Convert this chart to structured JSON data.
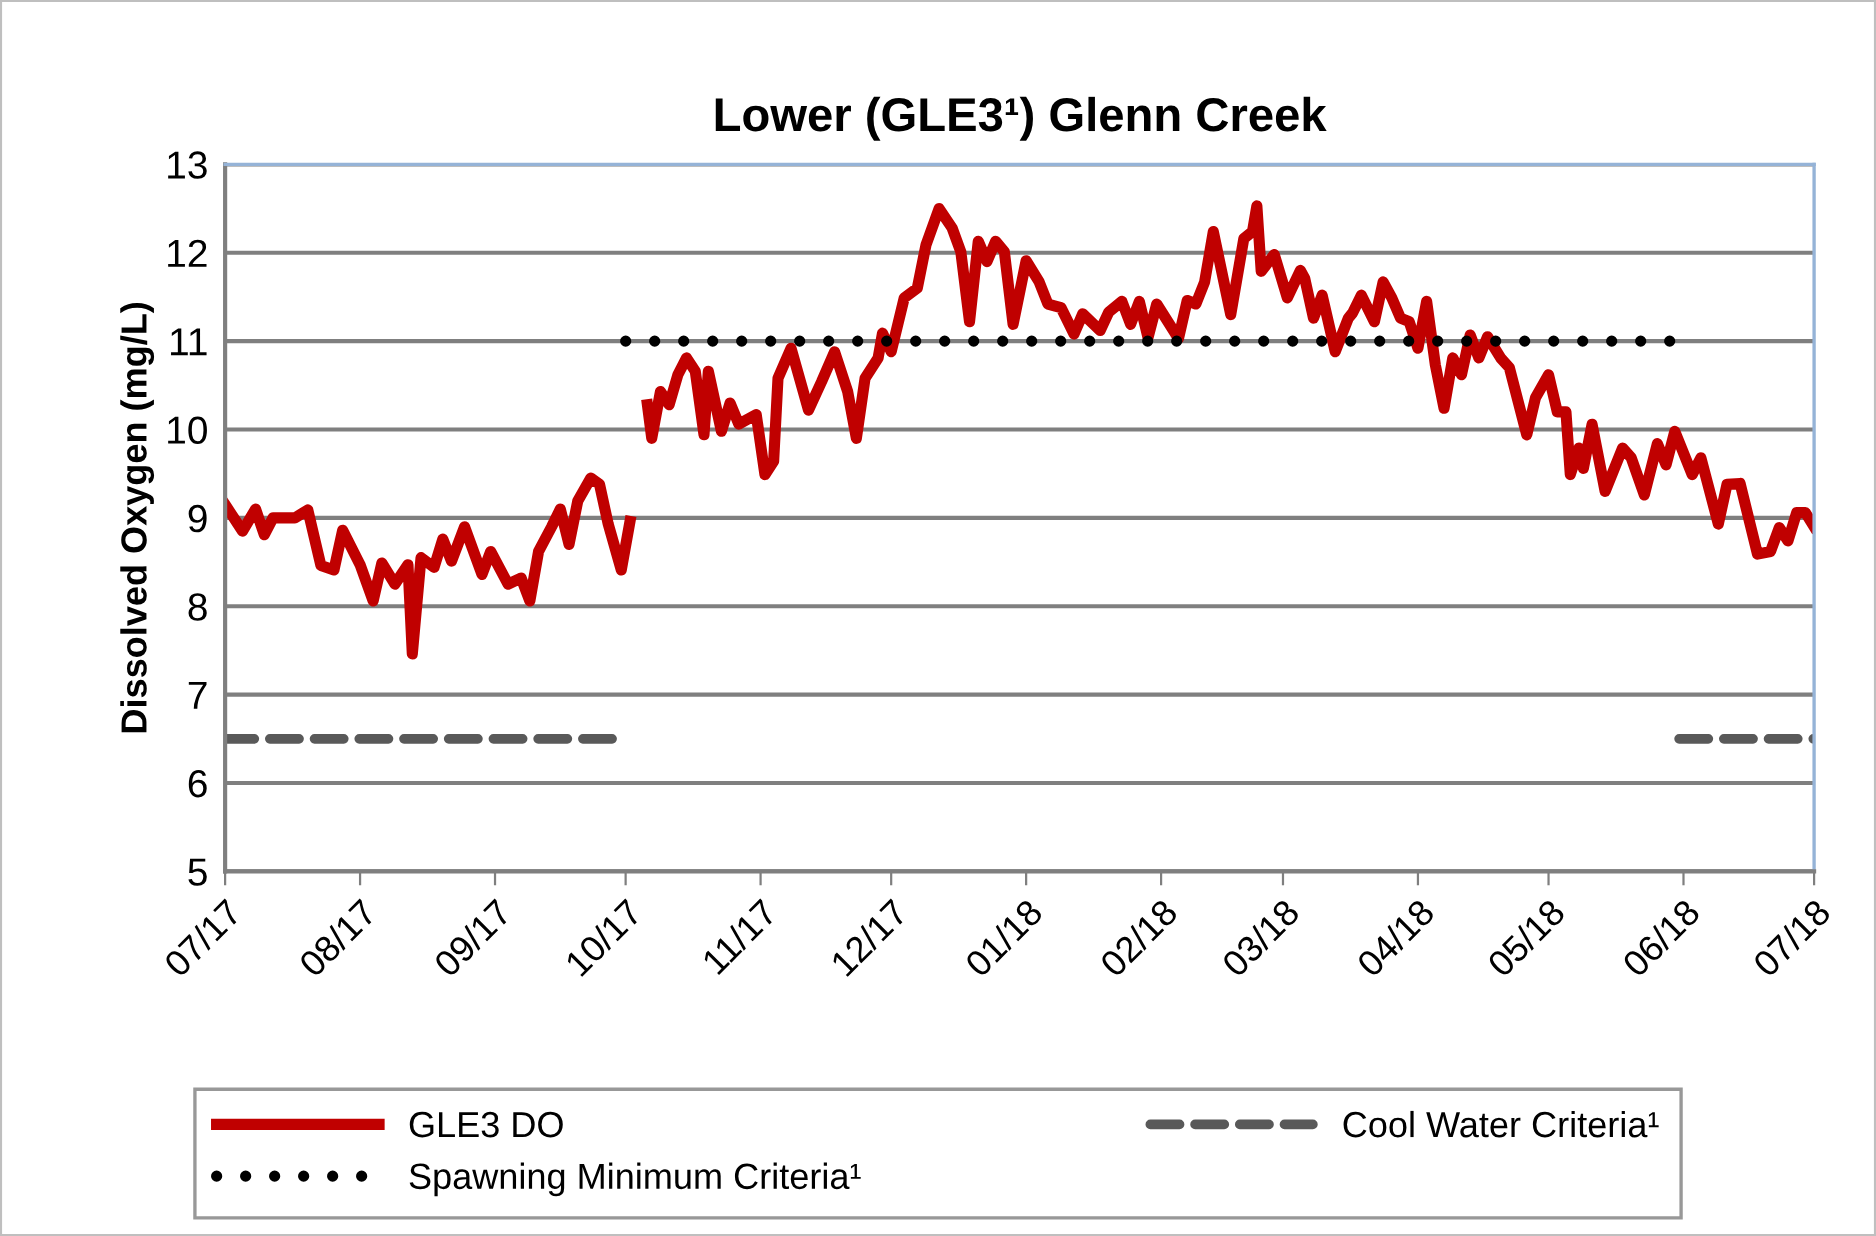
{
  "chart_data": {
    "type": "line",
    "title": "Lower (GLE3¹) Glenn Creek",
    "ylabel": "Dissolved Oxygen (mg/L)",
    "series": [
      {
        "name": "GLE3 DO",
        "color": "#c00000",
        "line_style": "solid",
        "x": [
          "2017-07-01",
          "2017-07-05",
          "2017-07-08",
          "2017-07-10",
          "2017-07-12",
          "2017-07-17",
          "2017-07-20",
          "2017-07-23",
          "2017-07-26",
          "2017-07-28",
          "2017-08-01",
          "2017-08-04",
          "2017-08-06",
          "2017-08-09",
          "2017-08-12",
          "2017-08-13",
          "2017-08-15",
          "2017-08-18",
          "2017-08-20",
          "2017-08-22",
          "2017-08-25",
          "2017-08-29",
          "2017-08-31",
          "2017-09-04",
          "2017-09-07",
          "2017-09-09",
          "2017-09-11",
          "2017-09-14",
          "2017-09-16",
          "2017-09-18",
          "2017-09-20",
          "2017-09-23",
          "2017-09-25",
          "2017-09-27",
          "2017-09-30",
          "2017-10-02",
          "2017-10-04",
          "2017-10-06",
          "2017-10-07",
          "2017-10-09",
          "2017-10-11",
          "2017-10-13",
          "2017-10-15",
          "2017-10-17",
          "2017-10-19",
          "2017-10-20",
          "2017-10-23",
          "2017-10-25",
          "2017-10-27",
          "2017-10-31",
          "2017-11-02",
          "2017-11-04",
          "2017-11-05",
          "2017-11-08",
          "2017-11-12",
          "2017-11-15",
          "2017-11-18",
          "2017-11-21",
          "2017-11-23",
          "2017-11-25",
          "2017-11-28",
          "2017-11-29",
          "2017-12-01",
          "2017-12-04",
          "2017-12-07",
          "2017-12-09",
          "2017-12-12",
          "2017-12-15",
          "2017-12-17",
          "2017-12-19",
          "2017-12-21",
          "2017-12-23",
          "2017-12-25",
          "2017-12-27",
          "2017-12-29",
          "2018-01-01",
          "2018-01-04",
          "2018-01-06",
          "2018-01-09",
          "2018-01-12",
          "2018-01-14",
          "2018-01-18",
          "2018-01-20",
          "2018-01-23",
          "2018-01-25",
          "2018-01-27",
          "2018-01-29",
          "2018-01-31",
          "2018-02-05",
          "2018-02-07",
          "2018-02-09",
          "2018-02-11",
          "2018-02-13",
          "2018-02-17",
          "2018-02-20",
          "2018-02-22",
          "2018-02-23",
          "2018-02-24",
          "2018-02-27",
          "2018-03-02",
          "2018-03-05",
          "2018-03-06",
          "2018-03-08",
          "2018-03-10",
          "2018-03-13",
          "2018-03-16",
          "2018-03-17",
          "2018-03-19",
          "2018-03-22",
          "2018-03-24",
          "2018-03-26",
          "2018-03-28",
          "2018-03-30",
          "2018-04-01",
          "2018-04-03",
          "2018-04-05",
          "2018-04-07",
          "2018-04-09",
          "2018-04-11",
          "2018-04-13",
          "2018-04-15",
          "2018-04-17",
          "2018-04-20",
          "2018-04-22",
          "2018-04-26",
          "2018-04-28",
          "2018-05-01",
          "2018-05-03",
          "2018-05-05",
          "2018-05-06",
          "2018-05-08",
          "2018-05-09",
          "2018-05-11",
          "2018-05-14",
          "2018-05-18",
          "2018-05-20",
          "2018-05-23",
          "2018-05-26",
          "2018-05-28",
          "2018-05-30",
          "2018-06-03",
          "2018-06-05",
          "2018-06-09",
          "2018-06-11",
          "2018-06-14",
          "2018-06-18",
          "2018-06-21",
          "2018-06-23",
          "2018-06-25",
          "2018-06-27",
          "2018-06-29",
          "2018-07-01"
        ],
        "values": [
          9.15,
          8.85,
          9.1,
          8.81,
          9.0,
          9.0,
          9.09,
          8.46,
          8.41,
          8.86,
          8.47,
          8.06,
          8.49,
          8.25,
          8.47,
          7.46,
          8.55,
          8.44,
          8.76,
          8.51,
          8.9,
          8.36,
          8.62,
          8.25,
          8.32,
          8.06,
          8.62,
          8.9,
          9.1,
          8.7,
          9.19,
          9.45,
          9.38,
          8.93,
          8.41,
          8.96,
          null,
          10.28,
          9.9,
          10.43,
          10.28,
          10.62,
          10.81,
          10.66,
          9.94,
          10.66,
          9.98,
          10.3,
          10.06,
          10.17,
          9.49,
          9.64,
          10.58,
          10.92,
          10.22,
          10.54,
          10.88,
          10.43,
          9.9,
          10.58,
          10.81,
          11.09,
          10.88,
          11.49,
          11.6,
          12.09,
          12.5,
          12.28,
          12.01,
          11.22,
          12.13,
          11.9,
          12.13,
          12.01,
          11.19,
          11.91,
          11.67,
          11.42,
          11.38,
          11.08,
          11.31,
          11.12,
          11.33,
          11.45,
          11.19,
          11.45,
          11.04,
          11.42,
          11.03,
          11.46,
          11.42,
          11.67,
          12.24,
          11.3,
          12.16,
          12.24,
          12.53,
          11.79,
          11.98,
          11.49,
          11.8,
          11.71,
          11.26,
          11.52,
          10.88,
          11.26,
          11.32,
          11.52,
          11.22,
          11.67,
          11.49,
          11.26,
          11.22,
          10.92,
          11.45,
          10.73,
          10.24,
          10.81,
          10.62,
          11.07,
          10.81,
          11.05,
          10.81,
          10.7,
          9.94,
          10.36,
          10.62,
          10.2,
          10.2,
          9.49,
          9.79,
          9.56,
          10.06,
          9.3,
          9.79,
          9.68,
          9.26,
          9.84,
          9.6,
          9.98,
          9.49,
          9.68,
          8.93,
          9.38,
          9.39,
          8.59,
          8.62,
          8.89,
          8.74,
          9.06,
          9.06,
          8.9
        ]
      },
      {
        "name": "Spawning Minimum Criteria¹",
        "color": "#000000",
        "line_style": "dotted",
        "x": [
          "2017-10-01",
          "2018-05-29"
        ],
        "values": [
          11,
          11
        ]
      },
      {
        "name": "Cool Water Criteria¹",
        "color": "#595959",
        "line_style": "dashed",
        "x": [
          "2017-07-01",
          "2017-10-01",
          "2018-01-01",
          "2018-05-31",
          "2018-07-01"
        ],
        "values": [
          6.5,
          6.5,
          null,
          6.5,
          6.5
        ]
      }
    ],
    "xlim": [
      "2017-07-01",
      "2018-07-01"
    ],
    "xticks": [
      {
        "value": "2017-07-01",
        "label": "07/17"
      },
      {
        "value": "2017-08-01",
        "label": "08/17"
      },
      {
        "value": "2017-09-01",
        "label": "09/17"
      },
      {
        "value": "2017-10-01",
        "label": "10/17"
      },
      {
        "value": "2017-11-01",
        "label": "11/17"
      },
      {
        "value": "2017-12-01",
        "label": "12/17"
      },
      {
        "value": "2018-01-01",
        "label": "01/18"
      },
      {
        "value": "2018-02-01",
        "label": "02/18"
      },
      {
        "value": "2018-03-01",
        "label": "03/18"
      },
      {
        "value": "2018-04-01",
        "label": "04/18"
      },
      {
        "value": "2018-05-01",
        "label": "05/18"
      },
      {
        "value": "2018-06-01",
        "label": "06/18"
      },
      {
        "value": "2018-07-01",
        "label": "07/18"
      }
    ],
    "ylim": [
      5,
      13
    ],
    "yticks": [
      5,
      6,
      7,
      8,
      9,
      10,
      11,
      12,
      13
    ],
    "grid": "y",
    "legend": "bottom"
  }
}
